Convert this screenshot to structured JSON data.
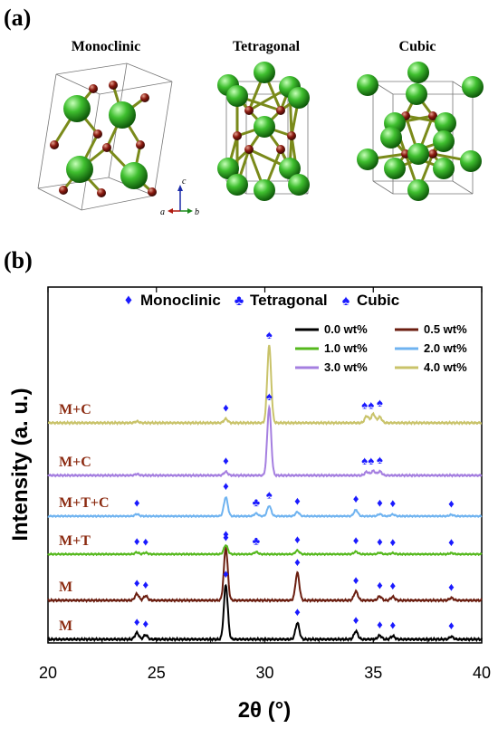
{
  "panel_a_label": "(a)",
  "panel_b_label": "(b)",
  "structures": [
    {
      "title": "Monoclinic"
    },
    {
      "title": "Tetragonal"
    },
    {
      "title": "Cubic"
    }
  ],
  "crystal_axes": {
    "a": "a",
    "b": "b",
    "c": "c"
  },
  "colors": {
    "zr_atom": "#3fbf2f",
    "o_atom": "#8b1a10",
    "marker": "#1a1aff",
    "series_0": "#000000",
    "series_05": "#6b1e10",
    "series_1": "#55b81d",
    "series_2": "#6fb3f0",
    "series_3": "#a57fe0",
    "series_4": "#c9c36a"
  },
  "chart_data": {
    "type": "line",
    "xlabel": "2θ (°)",
    "ylabel": "Intensity (a. u.)",
    "xlim": [
      20,
      40
    ],
    "xticks": [
      "20",
      "25",
      "30",
      "35",
      "40"
    ],
    "phase_legend": [
      {
        "symbol": "♦",
        "label": "Monoclinic"
      },
      {
        "symbol": "♣",
        "label": "Tetragonal"
      },
      {
        "symbol": "♠",
        "label": "Cubic"
      }
    ],
    "series": [
      {
        "name": "0.0 wt%",
        "phase_label": "M",
        "color": "#000000",
        "peaks": [
          [
            24.1,
            0.12
          ],
          [
            24.5,
            0.08
          ],
          [
            28.2,
            1.0
          ],
          [
            31.5,
            0.3
          ],
          [
            34.2,
            0.15
          ],
          [
            35.3,
            0.07
          ],
          [
            35.9,
            0.06
          ],
          [
            38.6,
            0.05
          ]
        ],
        "markers": [
          {
            "x": 24.1,
            "s": "♦"
          },
          {
            "x": 24.5,
            "s": "♦"
          },
          {
            "x": 28.2,
            "s": "♦"
          },
          {
            "x": 31.5,
            "s": "♦"
          },
          {
            "x": 34.2,
            "s": "♦"
          },
          {
            "x": 35.3,
            "s": "♦"
          },
          {
            "x": 35.9,
            "s": "♦"
          },
          {
            "x": 38.6,
            "s": "♦"
          }
        ]
      },
      {
        "name": "0.5 wt%",
        "phase_label": "M",
        "color": "#6b1e10",
        "peaks": [
          [
            24.1,
            0.13
          ],
          [
            24.5,
            0.09
          ],
          [
            28.2,
            1.05
          ],
          [
            31.5,
            0.55
          ],
          [
            34.2,
            0.18
          ],
          [
            35.3,
            0.08
          ],
          [
            35.9,
            0.07
          ],
          [
            38.6,
            0.05
          ]
        ],
        "markers": [
          {
            "x": 24.1,
            "s": "♦"
          },
          {
            "x": 24.5,
            "s": "♦"
          },
          {
            "x": 28.2,
            "s": "♦"
          },
          {
            "x": 31.5,
            "s": "♦"
          },
          {
            "x": 34.2,
            "s": "♦"
          },
          {
            "x": 35.3,
            "s": "♦"
          },
          {
            "x": 35.9,
            "s": "♦"
          },
          {
            "x": 38.6,
            "s": "♦"
          }
        ]
      },
      {
        "name": "1.0 wt%",
        "phase_label": "M+T",
        "color": "#55b81d",
        "peaks": [
          [
            24.1,
            0.05
          ],
          [
            24.5,
            0.04
          ],
          [
            28.2,
            0.25
          ],
          [
            29.6,
            0.06
          ],
          [
            31.5,
            0.1
          ],
          [
            34.2,
            0.07
          ],
          [
            35.3,
            0.04
          ],
          [
            35.9,
            0.03
          ],
          [
            38.6,
            0.03
          ]
        ],
        "markers": [
          {
            "x": 24.1,
            "s": "♦"
          },
          {
            "x": 24.5,
            "s": "♦"
          },
          {
            "x": 28.2,
            "s": "♦"
          },
          {
            "x": 29.6,
            "s": "♣"
          },
          {
            "x": 31.5,
            "s": "♦"
          },
          {
            "x": 34.2,
            "s": "♦"
          },
          {
            "x": 35.3,
            "s": "♦"
          },
          {
            "x": 35.9,
            "s": "♦"
          },
          {
            "x": 38.6,
            "s": "♦"
          }
        ]
      },
      {
        "name": "2.0 wt%",
        "phase_label": "M+T+C",
        "color": "#6fb3f0",
        "peaks": [
          [
            24.1,
            0.06
          ],
          [
            28.2,
            0.55
          ],
          [
            29.6,
            0.08
          ],
          [
            30.2,
            0.3
          ],
          [
            31.5,
            0.12
          ],
          [
            34.2,
            0.18
          ],
          [
            35.3,
            0.06
          ],
          [
            35.9,
            0.05
          ],
          [
            38.6,
            0.04
          ]
        ],
        "markers": [
          {
            "x": 24.1,
            "s": "♦"
          },
          {
            "x": 28.2,
            "s": "♦"
          },
          {
            "x": 29.6,
            "s": "♣"
          },
          {
            "x": 30.2,
            "s": "♠"
          },
          {
            "x": 31.5,
            "s": "♦"
          },
          {
            "x": 34.2,
            "s": "♦"
          },
          {
            "x": 35.3,
            "s": "♦"
          },
          {
            "x": 35.9,
            "s": "♦"
          },
          {
            "x": 38.6,
            "s": "♦"
          }
        ]
      },
      {
        "name": "3.0 wt%",
        "phase_label": "M+C",
        "color": "#a57fe0",
        "peaks": [
          [
            24.1,
            0.03
          ],
          [
            28.2,
            0.08
          ],
          [
            30.2,
            1.5
          ],
          [
            34.7,
            0.08
          ],
          [
            35.0,
            0.1
          ],
          [
            35.3,
            0.09
          ]
        ],
        "markers": [
          {
            "x": 28.2,
            "s": "♦"
          },
          {
            "x": 30.2,
            "s": "♠"
          },
          {
            "x": 34.6,
            "s": "♠"
          },
          {
            "x": 34.9,
            "s": "♠"
          },
          {
            "x": 35.3,
            "s": "♠"
          }
        ]
      },
      {
        "name": "4.0 wt%",
        "phase_label": "M+C",
        "color": "#c9c36a",
        "peaks": [
          [
            24.1,
            0.03
          ],
          [
            28.2,
            0.08
          ],
          [
            30.2,
            1.55
          ],
          [
            34.7,
            0.14
          ],
          [
            35.0,
            0.18
          ],
          [
            35.3,
            0.12
          ]
        ],
        "markers": [
          {
            "x": 28.2,
            "s": "♦"
          },
          {
            "x": 30.2,
            "s": "♠"
          },
          {
            "x": 34.6,
            "s": "♠"
          },
          {
            "x": 34.9,
            "s": "♠"
          },
          {
            "x": 35.3,
            "s": "♠"
          }
        ]
      }
    ]
  }
}
